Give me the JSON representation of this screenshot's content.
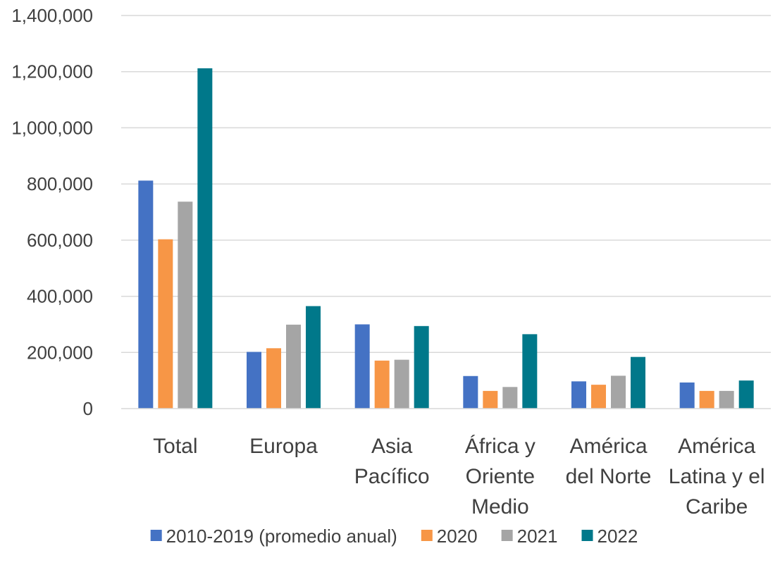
{
  "chart_data": {
    "type": "bar",
    "categories": [
      [
        "Total"
      ],
      [
        "Europa"
      ],
      [
        "Asia",
        "Pacífico"
      ],
      [
        "África y",
        "Oriente",
        "Medio"
      ],
      [
        "América",
        "del Norte"
      ],
      [
        "América",
        "Latina y el",
        "Caribe"
      ]
    ],
    "series": [
      {
        "name": "2010-2019 (promedio anual)",
        "color": "#4472C4",
        "values": [
          812000,
          202000,
          300000,
          116000,
          97000,
          93000
        ]
      },
      {
        "name": "2020",
        "color": "#F79646",
        "values": [
          603000,
          215000,
          171000,
          63000,
          85000,
          63000
        ]
      },
      {
        "name": "2021",
        "color": "#A5A5A5",
        "values": [
          737000,
          299000,
          174000,
          77000,
          117000,
          63000
        ]
      },
      {
        "name": "2022",
        "color": "#00788A",
        "values": [
          1212000,
          365000,
          294000,
          265000,
          184000,
          100000
        ]
      }
    ],
    "y_ticks": [
      "0",
      "200,000",
      "400,000",
      "600,000",
      "800,000",
      "1,000,000",
      "1,200,000",
      "1,400,000"
    ],
    "ylim": [
      0,
      1400000
    ],
    "grid": true,
    "legend_position": "bottom",
    "title": "",
    "xlabel": "",
    "ylabel": ""
  }
}
